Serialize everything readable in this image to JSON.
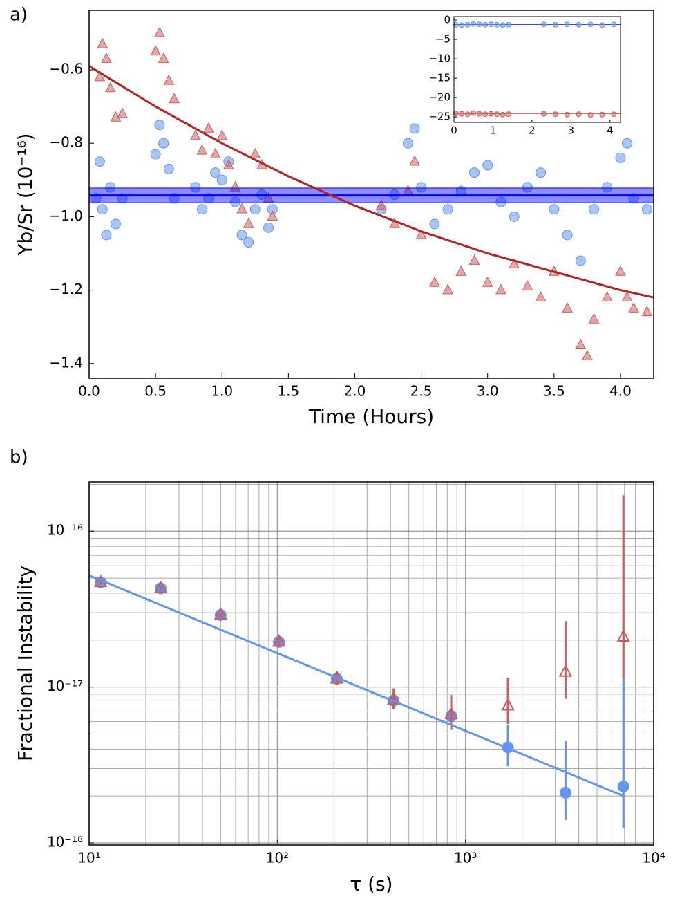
{
  "chart_data": [
    {
      "type": "scatter",
      "panel_label": "a)",
      "xlabel": "Time (Hours)",
      "ylabel": "Yb/Sr (10⁻¹⁶)",
      "xlim": [
        0,
        4.25
      ],
      "ylim": [
        -1.44,
        -0.438
      ],
      "xticks": [
        {
          "value": 0,
          "label": "0.0"
        },
        0.5,
        {
          "value": 1,
          "label": "1.0"
        },
        1.5,
        {
          "value": 2,
          "label": "2.0"
        },
        2.5,
        {
          "value": 3,
          "label": "3.0"
        },
        3.5,
        {
          "value": 4,
          "label": "4.0"
        }
      ],
      "yticks": [
        {
          "value": -0.6,
          "label": "−0.6"
        },
        {
          "value": -0.8,
          "label": "−0.8"
        },
        {
          "value": -1.0,
          "label": "−1.0"
        },
        {
          "value": -1.2,
          "label": "−1.2"
        },
        {
          "value": -1.4,
          "label": "−1.4"
        }
      ],
      "band": {
        "center": -0.942,
        "lower": -0.962,
        "upper": -0.922,
        "color": "#0000ff"
      },
      "fit": {
        "color": "#b22222",
        "x": [
          0,
          0.5,
          1.0,
          1.5,
          2.0,
          2.5,
          3.0,
          3.5,
          4.0,
          4.25
        ],
        "values": [
          -0.59,
          -0.7,
          -0.8,
          -0.89,
          -0.97,
          -1.04,
          -1.1,
          -1.15,
          -1.2,
          -1.22
        ]
      },
      "series": [
        {
          "marker": "circle",
          "color": "#6495ed",
          "x": [
            0.05,
            0.08,
            0.1,
            0.13,
            0.16,
            0.2,
            0.25,
            0.5,
            0.53,
            0.56,
            0.6,
            0.64,
            0.8,
            0.85,
            0.9,
            0.95,
            1.0,
            1.05,
            1.1,
            1.15,
            1.2,
            1.25,
            1.3,
            1.35,
            1.38,
            2.2,
            2.3,
            2.4,
            2.45,
            2.5,
            2.6,
            2.7,
            2.8,
            2.9,
            3.0,
            3.1,
            3.2,
            3.3,
            3.4,
            3.5,
            3.6,
            3.7,
            3.8,
            3.9,
            4.0,
            4.05,
            4.1,
            4.2
          ],
          "values": [
            -0.95,
            -0.85,
            -0.98,
            -1.05,
            -0.92,
            -1.02,
            -0.95,
            -0.83,
            -0.75,
            -0.8,
            -0.87,
            -0.95,
            -0.92,
            -0.98,
            -0.95,
            -0.88,
            -0.9,
            -0.85,
            -0.96,
            -1.05,
            -1.07,
            -0.98,
            -0.94,
            -1.03,
            -0.98,
            -0.98,
            -0.94,
            -0.8,
            -0.76,
            -0.92,
            -1.02,
            -0.98,
            -0.93,
            -0.88,
            -0.86,
            -0.96,
            -1.0,
            -0.92,
            -0.88,
            -0.98,
            -1.05,
            -1.12,
            -0.98,
            -0.92,
            -0.84,
            -0.8,
            -0.95,
            -0.98
          ]
        },
        {
          "marker": "triangle",
          "color": "#cd5c5c",
          "x": [
            0.08,
            0.1,
            0.13,
            0.16,
            0.2,
            0.25,
            0.5,
            0.53,
            0.56,
            0.6,
            0.64,
            0.8,
            0.85,
            0.9,
            0.95,
            1.0,
            1.05,
            1.1,
            1.15,
            1.2,
            1.25,
            1.3,
            1.35,
            1.38,
            2.2,
            2.3,
            2.4,
            2.45,
            2.5,
            2.6,
            2.7,
            2.8,
            2.9,
            3.0,
            3.1,
            3.2,
            3.3,
            3.4,
            3.5,
            3.6,
            3.7,
            3.75,
            3.8,
            3.9,
            4.0,
            4.05,
            4.1,
            4.2
          ],
          "values": [
            -0.62,
            -0.53,
            -0.57,
            -0.65,
            -0.73,
            -0.72,
            -0.55,
            -0.5,
            -0.57,
            -0.63,
            -0.68,
            -0.78,
            -0.82,
            -0.76,
            -0.83,
            -0.78,
            -0.86,
            -0.92,
            -0.98,
            -1.02,
            -0.83,
            -0.86,
            -0.95,
            -1.0,
            -0.97,
            -1.02,
            -0.93,
            -0.85,
            -1.05,
            -1.18,
            -1.2,
            -1.15,
            -1.12,
            -1.18,
            -1.2,
            -1.13,
            -1.19,
            -1.22,
            -1.15,
            -1.25,
            -1.35,
            -1.38,
            -1.28,
            -1.22,
            -1.15,
            -1.22,
            -1.25,
            -1.26
          ]
        }
      ]
    },
    {
      "type": "scatter",
      "inset": true,
      "xlim": [
        0,
        4.27
      ],
      "ylim": [
        -26.4,
        0.9
      ],
      "xticks": [
        0,
        1,
        2,
        3,
        4
      ],
      "yticks": [
        0,
        {
          "value": -5,
          "label": "−5"
        },
        {
          "value": -10,
          "label": "−10"
        },
        {
          "value": -15,
          "label": "−15"
        },
        {
          "value": -20,
          "label": "−20"
        },
        {
          "value": -25,
          "label": "−25"
        }
      ],
      "hlines": [
        {
          "value": -1.1,
          "color": "#0000ff"
        },
        {
          "value": -24.1,
          "color": "#b22222"
        }
      ],
      "series": [
        {
          "marker": "circle",
          "color": "#6495ed",
          "x": [
            0.05,
            0.2,
            0.35,
            0.5,
            0.65,
            0.8,
            0.95,
            1.1,
            1.25,
            1.4,
            2.3,
            2.6,
            2.9,
            3.2,
            3.5,
            3.8,
            4.1
          ],
          "values": [
            -1.2,
            -1.3,
            -1.2,
            -1.0,
            -1.1,
            -1.2,
            -1.1,
            -1.2,
            -1.3,
            -1.2,
            -1.1,
            -1.2,
            -1.1,
            -1.2,
            -1.1,
            -1.3,
            -1.1
          ]
        },
        {
          "marker": "circle",
          "color": "#cd5c5c",
          "x": [
            0.05,
            0.2,
            0.35,
            0.5,
            0.65,
            0.8,
            0.95,
            1.1,
            1.25,
            1.4,
            2.3,
            2.6,
            2.9,
            3.2,
            3.5,
            3.8,
            4.1
          ],
          "values": [
            -24.1,
            -24.2,
            -24.3,
            -24.0,
            -24.2,
            -24.3,
            -24.2,
            -24.3,
            -24.4,
            -24.3,
            -24.2,
            -24.3,
            -24.4,
            -24.3,
            -24.5,
            -24.4,
            -24.3
          ]
        }
      ]
    },
    {
      "type": "scatter",
      "panel_label": "b)",
      "xlabel": "τ (s)",
      "ylabel": "Fractional Instability",
      "xlog": true,
      "ylog": true,
      "grid": true,
      "xlim": [
        10,
        10000
      ],
      "ylim": [
        9.7e-19,
        2.07e-16
      ],
      "xticks": [
        {
          "value": 10,
          "label": "10¹"
        },
        {
          "value": 100,
          "label": "10²"
        },
        {
          "value": 1000,
          "label": "10³"
        },
        {
          "value": 10000,
          "label": "10⁴"
        }
      ],
      "yticks": [
        {
          "value": 1e-18,
          "label": "10⁻¹⁸"
        },
        {
          "value": 1e-17,
          "label": "10⁻¹⁷"
        },
        {
          "value": 1e-16,
          "label": "10⁻¹⁶"
        }
      ],
      "xminorticks": [
        20,
        30,
        40,
        50,
        60,
        70,
        80,
        90,
        200,
        300,
        400,
        500,
        600,
        700,
        800,
        900,
        2000,
        3000,
        4000,
        5000,
        6000,
        7000,
        8000,
        9000
      ],
      "yminorticks": [
        2e-18,
        3e-18,
        4e-18,
        5e-18,
        6e-18,
        7e-18,
        8e-18,
        9e-18,
        2e-17,
        3e-17,
        4e-17,
        5e-17,
        6e-17,
        7e-17,
        8e-17,
        9e-17,
        2e-16
      ],
      "fit": {
        "color": "#6495ed",
        "x": [
          10,
          6900
        ],
        "values": [
          5.2e-17,
          2e-18
        ]
      },
      "series": [
        {
          "marker": "circle",
          "color": "#6495ed",
          "filled": true,
          "x": [
            11.5,
            24,
            50,
            102,
            207,
            415,
            840,
            1680,
            3400,
            6900
          ],
          "values": [
            4.7e-17,
            4.3e-17,
            2.9e-17,
            1.95e-17,
            1.13e-17,
            8.2e-18,
            6.5e-18,
            4.1e-18,
            2.1e-18,
            2.3e-18
          ],
          "lower": [
            4.55e-17,
            4.15e-17,
            2.78e-17,
            1.85e-17,
            1.05e-17,
            7.4e-18,
            5.3e-18,
            3.1e-18,
            1.4e-18,
            1.25e-18
          ],
          "upper": [
            4.85e-17,
            4.45e-17,
            3.02e-17,
            2.05e-17,
            1.22e-17,
            9.2e-18,
            8e-18,
            5.7e-18,
            4.5e-18,
            1.15e-17
          ]
        },
        {
          "marker": "triangle",
          "color": "#cd5c5c",
          "filled": false,
          "x": [
            11.5,
            24,
            50,
            102,
            207,
            415,
            840,
            1680,
            3400,
            6900
          ],
          "values": [
            4.7e-17,
            4.3e-17,
            2.9e-17,
            1.95e-17,
            1.13e-17,
            8.3e-18,
            6.7e-18,
            7.6e-18,
            1.25e-17,
            2.1e-17
          ],
          "lower": [
            4.55e-17,
            4.15e-17,
            2.78e-17,
            1.85e-17,
            1.03e-17,
            7.2e-18,
            5.4e-18,
            5.8e-18,
            8.4e-18,
            1.15e-17
          ],
          "upper": [
            4.85e-17,
            4.45e-17,
            3.02e-17,
            2.05e-17,
            1.26e-17,
            9.8e-18,
            8.9e-18,
            1.15e-17,
            2.65e-17,
            1.7e-16
          ]
        }
      ]
    }
  ]
}
